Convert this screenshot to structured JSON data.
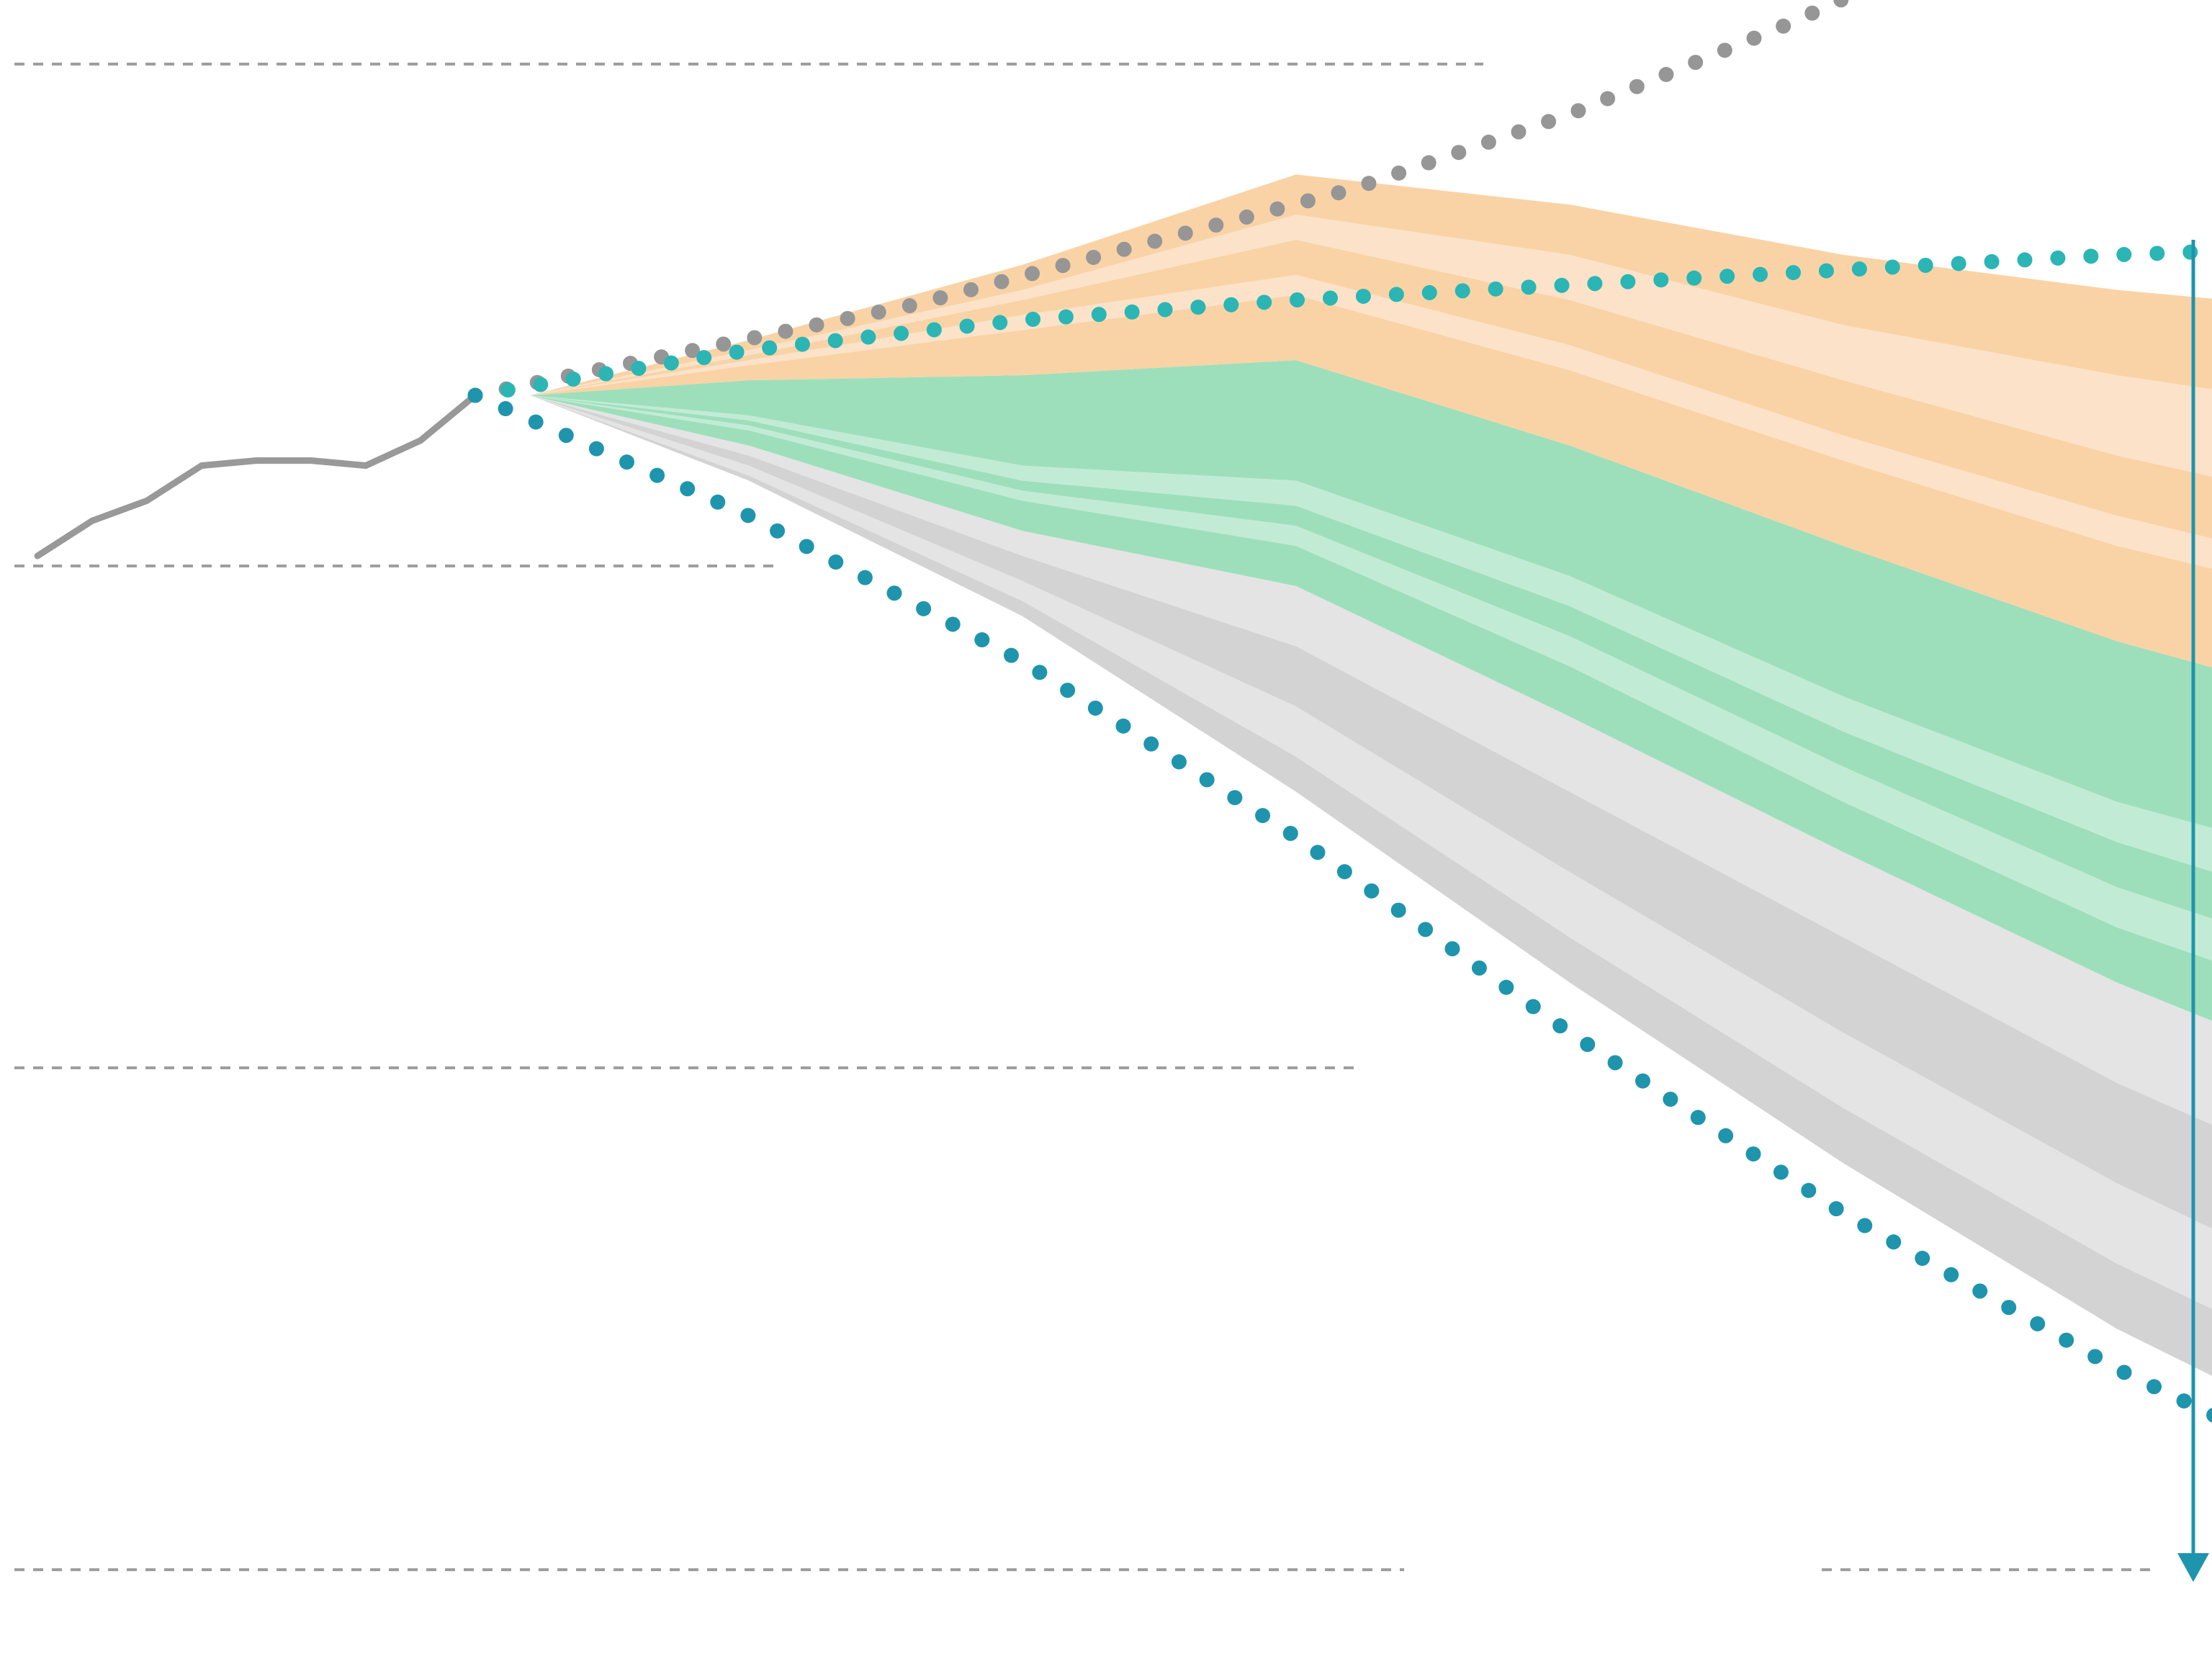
{
  "chart_data": {
    "type": "area",
    "title": "",
    "xlabel": "",
    "ylabel": "",
    "x_start": 0,
    "x_end": 40,
    "ylim": [
      0,
      3
    ],
    "gridlines": [
      3,
      2,
      1,
      0
    ],
    "grid": true,
    "legend": "none",
    "colors": {
      "history_line": "#999999",
      "high_trajectory_dots": "#969696",
      "upper_bound_dots": "#2bb5b5",
      "lower_bound_dots": "#1f94ad",
      "arrow": "#1f94ad",
      "gridline": "#9e9e9e",
      "orange_dark": "#f9d3a6",
      "orange_light": "#fce2c8",
      "green_dark": "#9ddfbb",
      "green_light": "#c2ebd5",
      "grey_light": "#e4e4e4",
      "grey_dark": "#d3d3d3"
    },
    "history": {
      "x": [
        -8,
        -7,
        -6,
        -5,
        -4,
        -3,
        -2,
        -1,
        0
      ],
      "y": [
        2.02,
        2.09,
        2.13,
        2.2,
        2.21,
        2.21,
        2.2,
        2.25,
        2.34
      ]
    },
    "high_trajectory": {
      "x": [
        0,
        8,
        16,
        20,
        24,
        29
      ],
      "y": [
        2.34,
        2.52,
        2.75,
        2.9,
        3.08,
        3.33
      ]
    },
    "upper_bound": {
      "x": [
        0,
        5,
        10,
        15,
        20,
        25,
        30,
        35,
        40
      ],
      "y": [
        2.34,
        2.43,
        2.49,
        2.53,
        2.56,
        2.59,
        2.62,
        2.64,
        2.65
      ]
    },
    "lower_bound": {
      "x": [
        0,
        5,
        10,
        15,
        20,
        25,
        30,
        35,
        40
      ],
      "y": [
        2.34,
        2.1,
        1.81,
        1.46,
        1.07,
        0.71,
        0.4,
        0.14,
        -0.01
      ]
    },
    "stacked_x": [
      1,
      5,
      10,
      15,
      20,
      25,
      30,
      35,
      40
    ],
    "stacked_base": [
      2.34,
      2.17,
      1.9,
      1.55,
      1.17,
      0.81,
      0.48,
      0.21,
      0.02
    ],
    "series": [
      {
        "color_key": "grey_dark",
        "values": [
          0.0,
          0.01,
          0.03,
          0.07,
          0.09,
          0.11,
          0.13,
          0.14,
          0.14
        ]
      },
      {
        "color_key": "grey_light",
        "values": [
          0.0,
          0.02,
          0.04,
          0.1,
          0.13,
          0.15,
          0.16,
          0.16,
          0.16
        ]
      },
      {
        "color_key": "grey_dark",
        "values": [
          0.0,
          0.02,
          0.05,
          0.12,
          0.16,
          0.19,
          0.2,
          0.22,
          0.23
        ]
      },
      {
        "color_key": "grey_light",
        "values": [
          0.0,
          0.02,
          0.05,
          0.12,
          0.15,
          0.17,
          0.2,
          0.22,
          0.24
        ]
      },
      {
        "color_key": "green_dark",
        "values": [
          0.0,
          0.03,
          0.06,
          0.08,
          0.1,
          0.1,
          0.11,
          0.14,
          0.14
        ]
      },
      {
        "color_key": "green_light",
        "values": [
          0.0,
          0.01,
          0.02,
          0.04,
          0.06,
          0.07,
          0.08,
          0.09,
          0.09
        ]
      },
      {
        "color_key": "green_dark",
        "values": [
          0.0,
          0.01,
          0.02,
          0.04,
          0.06,
          0.07,
          0.09,
          0.1,
          0.11
        ]
      },
      {
        "color_key": "green_light",
        "values": [
          0.0,
          0.01,
          0.03,
          0.05,
          0.06,
          0.07,
          0.08,
          0.1,
          0.11
        ]
      },
      {
        "color_key": "green_dark",
        "values": [
          0.0,
          0.07,
          0.18,
          0.24,
          0.26,
          0.3,
          0.32,
          0.32,
          0.32
        ]
      },
      {
        "color_key": "orange_dark",
        "values": [
          0.0,
          0.03,
          0.09,
          0.13,
          0.15,
          0.17,
          0.19,
          0.21,
          0.24
        ]
      },
      {
        "color_key": "orange_light",
        "values": [
          0.0,
          0.01,
          0.03,
          0.04,
          0.05,
          0.05,
          0.06,
          0.06,
          0.06
        ]
      },
      {
        "color_key": "orange_dark",
        "values": [
          0.0,
          0.01,
          0.03,
          0.07,
          0.09,
          0.11,
          0.12,
          0.13,
          0.14
        ]
      },
      {
        "color_key": "orange_light",
        "values": [
          0.0,
          0.01,
          0.02,
          0.05,
          0.09,
          0.11,
          0.16,
          0.2,
          0.21
        ]
      },
      {
        "color_key": "orange_dark",
        "values": [
          0.0,
          0.02,
          0.05,
          0.08,
          0.1,
          0.14,
          0.17,
          0.2,
          0.21
        ]
      }
    ]
  }
}
